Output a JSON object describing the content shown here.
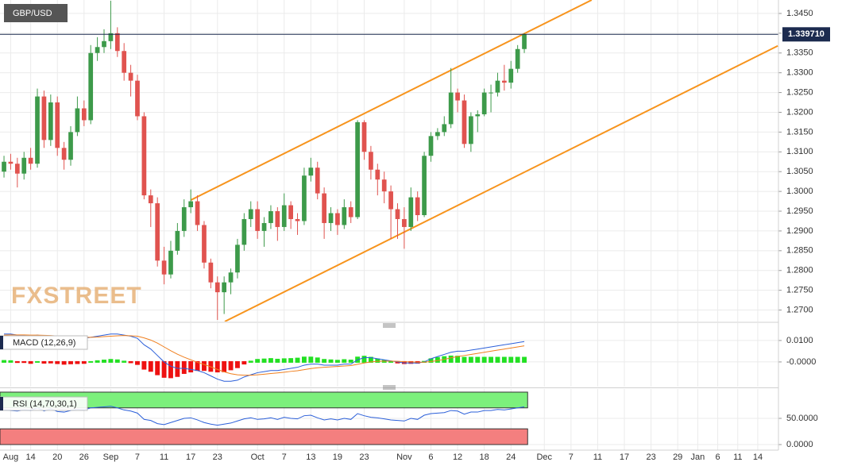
{
  "chart_data": [
    {
      "type": "candlestick",
      "symbol": "GBP/USD",
      "logo": "FXSTREET",
      "up_color": "#3d9a4a",
      "down_color": "#e0534f",
      "xlim": [
        -0.6,
        116.1
      ],
      "ylim": [
        1.2671,
        1.3484
      ],
      "xticks": [
        {
          "value": 1,
          "label": "Aug"
        },
        {
          "value": 4,
          "label": "14"
        },
        {
          "value": 8,
          "label": "20"
        },
        {
          "value": 12,
          "label": "26"
        },
        {
          "value": 16,
          "label": "Sep"
        },
        {
          "value": 20,
          "label": "7"
        },
        {
          "value": 24,
          "label": "11"
        },
        {
          "value": 28,
          "label": "17"
        },
        {
          "value": 32,
          "label": "23"
        },
        {
          "value": 38,
          "label": "Oct"
        },
        {
          "value": 42,
          "label": "7"
        },
        {
          "value": 46,
          "label": "13"
        },
        {
          "value": 50,
          "label": "19"
        },
        {
          "value": 54,
          "label": "23"
        },
        {
          "value": 60,
          "label": "Nov"
        },
        {
          "value": 64,
          "label": "6"
        },
        {
          "value": 68,
          "label": "12"
        },
        {
          "value": 72,
          "label": "18"
        },
        {
          "value": 76,
          "label": "24"
        },
        {
          "value": 81,
          "label": "Dec"
        },
        {
          "value": 85,
          "label": "7"
        },
        {
          "value": 89,
          "label": "11"
        },
        {
          "value": 93,
          "label": "17"
        },
        {
          "value": 97,
          "label": "23"
        },
        {
          "value": 101,
          "label": "29"
        },
        {
          "value": 104,
          "label": "Jan"
        },
        {
          "value": 107,
          "label": "6"
        },
        {
          "value": 110,
          "label": "11"
        },
        {
          "value": 113,
          "label": "14"
        }
      ],
      "yticks": [
        {
          "value": 1.27,
          "label": "1.2700"
        },
        {
          "value": 1.275,
          "label": "1.2750"
        },
        {
          "value": 1.28,
          "label": "1.2800"
        },
        {
          "value": 1.285,
          "label": "1.2850"
        },
        {
          "value": 1.29,
          "label": "1.2900"
        },
        {
          "value": 1.295,
          "label": "1.2950"
        },
        {
          "value": 1.3,
          "label": "1.3000"
        },
        {
          "value": 1.305,
          "label": "1.3050"
        },
        {
          "value": 1.31,
          "label": "1.3100"
        },
        {
          "value": 1.315,
          "label": "1.3150"
        },
        {
          "value": 1.32,
          "label": "1.3200"
        },
        {
          "value": 1.325,
          "label": "1.3250"
        },
        {
          "value": 1.33,
          "label": "1.3300"
        },
        {
          "value": 1.335,
          "label": "1.3350"
        },
        {
          "value": 1.34,
          "label": "1.3400"
        },
        {
          "value": 1.345,
          "label": "1.3450"
        }
      ],
      "grid": true,
      "last_price": {
        "value": 1.33971,
        "label": "1.339710",
        "color": "#1c2b4f"
      },
      "trendlines": [
        {
          "x": [
            28,
            88.1
          ],
          "y": [
            1.2978,
            1.3484
          ],
          "color": "#f7941d"
        },
        {
          "x": [
            33.1,
            116
          ],
          "y": [
            1.2671,
            1.3368
          ],
          "color": "#f7941d"
        }
      ],
      "open": [
        1.305,
        1.3075,
        1.307,
        1.3045,
        1.3085,
        1.307,
        1.324,
        1.313,
        1.3225,
        1.311,
        1.308,
        1.315,
        1.321,
        1.318,
        1.335,
        1.3365,
        1.338,
        1.34,
        1.3355,
        1.33,
        1.328,
        1.319,
        1.299,
        1.297,
        1.2825,
        1.279,
        1.285,
        1.29,
        1.296,
        1.2975,
        1.2915,
        1.282,
        1.277,
        1.2745,
        1.277,
        1.2795,
        1.2865,
        1.293,
        1.2955,
        1.29,
        1.292,
        1.295,
        1.291,
        1.2965,
        1.293,
        1.2925,
        1.304,
        1.306,
        1.2995,
        1.292,
        1.2945,
        1.2915,
        1.296,
        1.2935,
        1.3175,
        1.31,
        1.3055,
        1.303,
        1.3,
        1.2955,
        1.293,
        1.291,
        1.2985,
        1.294,
        1.309,
        1.314,
        1.315,
        1.317,
        1.325,
        1.323,
        1.312,
        1.319,
        1.3195,
        1.325,
        1.325,
        1.328,
        1.3275,
        1.331,
        1.336
      ],
      "high": [
        1.309,
        1.3095,
        1.3085,
        1.31,
        1.311,
        1.326,
        1.3255,
        1.3245,
        1.324,
        1.3125,
        1.3165,
        1.324,
        1.323,
        1.337,
        1.339,
        1.341,
        1.3482,
        1.3415,
        1.3375,
        1.332,
        1.3295,
        1.32,
        1.3005,
        1.2985,
        1.286,
        1.2875,
        1.292,
        1.298,
        1.3005,
        1.299,
        1.2925,
        1.283,
        1.2785,
        1.2785,
        1.2805,
        1.288,
        1.2945,
        1.2975,
        1.2975,
        1.2935,
        1.2965,
        1.296,
        1.2995,
        1.2975,
        1.2945,
        1.306,
        1.3085,
        1.3075,
        1.301,
        1.296,
        1.2955,
        1.298,
        1.2975,
        1.318,
        1.318,
        1.3115,
        1.307,
        1.305,
        1.3015,
        1.297,
        1.296,
        1.301,
        1.3,
        1.31,
        1.315,
        1.316,
        1.319,
        1.3312,
        1.326,
        1.3245,
        1.32,
        1.3205,
        1.326,
        1.327,
        1.33,
        1.332,
        1.333,
        1.337,
        1.34
      ],
      "low": [
        1.3035,
        1.3055,
        1.301,
        1.303,
        1.3055,
        1.306,
        1.311,
        1.3115,
        1.309,
        1.3055,
        1.3065,
        1.314,
        1.3165,
        1.317,
        1.333,
        1.335,
        1.336,
        1.334,
        1.328,
        1.324,
        1.318,
        1.298,
        1.291,
        1.281,
        1.2765,
        1.278,
        1.284,
        1.2885,
        1.2945,
        1.29,
        1.2805,
        1.2755,
        1.2675,
        1.269,
        1.274,
        1.278,
        1.285,
        1.291,
        1.288,
        1.286,
        1.2905,
        1.2875,
        1.29,
        1.2905,
        1.289,
        1.2915,
        1.3025,
        1.298,
        1.288,
        1.29,
        1.289,
        1.2905,
        1.292,
        1.293,
        1.308,
        1.303,
        1.299,
        1.297,
        1.288,
        1.288,
        1.2855,
        1.29,
        1.2925,
        1.2935,
        1.3075,
        1.313,
        1.314,
        1.316,
        1.32,
        1.311,
        1.31,
        1.315,
        1.319,
        1.32,
        1.324,
        1.3255,
        1.326,
        1.33,
        1.335
      ],
      "close": [
        1.3075,
        1.307,
        1.3045,
        1.3085,
        1.307,
        1.324,
        1.313,
        1.3225,
        1.311,
        1.308,
        1.315,
        1.321,
        1.318,
        1.335,
        1.3365,
        1.338,
        1.34,
        1.3355,
        1.33,
        1.328,
        1.319,
        1.299,
        1.297,
        1.2825,
        1.279,
        1.285,
        1.29,
        1.296,
        1.2975,
        1.2915,
        1.282,
        1.277,
        1.2745,
        1.277,
        1.2795,
        1.2865,
        1.293,
        1.2955,
        1.29,
        1.292,
        1.295,
        1.291,
        1.2965,
        1.293,
        1.2925,
        1.304,
        1.306,
        1.2995,
        1.292,
        1.2945,
        1.2915,
        1.296,
        1.2935,
        1.3175,
        1.31,
        1.3055,
        1.303,
        1.3,
        1.2955,
        1.293,
        1.291,
        1.2985,
        1.294,
        1.309,
        1.314,
        1.315,
        1.317,
        1.325,
        1.323,
        1.312,
        1.319,
        1.3195,
        1.325,
        1.325,
        1.328,
        1.3275,
        1.331,
        1.336,
        1.33971
      ]
    },
    {
      "type": "macd",
      "label": "MACD (12,26,9)",
      "ylim": [
        -0.0115,
        0.0181
      ],
      "yticks": [
        {
          "value": 0.01,
          "label": "0.0100"
        },
        {
          "value": 0,
          "label": "-0.0000"
        }
      ],
      "series": [
        {
          "color": "#2b5fd9",
          "values": [
            0.013,
            0.013,
            0.0125,
            0.0125,
            0.012,
            0.0125,
            0.012,
            0.012,
            0.0115,
            0.011,
            0.011,
            0.011,
            0.011,
            0.0115,
            0.012,
            0.0125,
            0.013,
            0.013,
            0.0125,
            0.012,
            0.011,
            0.008,
            0.006,
            0.003,
            0.0,
            -0.002,
            -0.003,
            -0.003,
            -0.0035,
            -0.004,
            -0.005,
            -0.0065,
            -0.008,
            -0.009,
            -0.009,
            -0.0085,
            -0.007,
            -0.006,
            -0.005,
            -0.0045,
            -0.004,
            -0.004,
            -0.0035,
            -0.003,
            -0.0025,
            -0.0015,
            -0.001,
            -0.001,
            -0.0015,
            -0.0015,
            -0.0015,
            -0.001,
            -0.001,
            0.001,
            0.002,
            0.002,
            0.0015,
            0.001,
            0.0005,
            0.0,
            -0.0005,
            -0.0005,
            -0.0005,
            0.0,
            0.0015,
            0.0025,
            0.0035,
            0.0045,
            0.005,
            0.005,
            0.0055,
            0.006,
            0.0065,
            0.007,
            0.0075,
            0.008,
            0.0085,
            0.009,
            0.0095
          ]
        },
        {
          "color": "#f07f1e",
          "values": [
            0.0125,
            0.0126,
            0.0126,
            0.0126,
            0.0125,
            0.0125,
            0.0124,
            0.0123,
            0.0121,
            0.0119,
            0.0117,
            0.0116,
            0.0115,
            0.0115,
            0.0116,
            0.0118,
            0.012,
            0.0122,
            0.0123,
            0.0122,
            0.012,
            0.0112,
            0.0102,
            0.0088,
            0.007,
            0.0052,
            0.0036,
            0.0022,
            0.001,
            -0.0002,
            -0.0012,
            -0.0023,
            -0.0035,
            -0.0046,
            -0.0055,
            -0.006,
            -0.0062,
            -0.0062,
            -0.006,
            -0.0057,
            -0.0054,
            -0.0051,
            -0.0048,
            -0.0044,
            -0.0041,
            -0.0036,
            -0.0031,
            -0.0027,
            -0.0025,
            -0.0023,
            -0.0021,
            -0.0019,
            -0.0017,
            -0.0011,
            -0.0005,
            0.0,
            0.0003,
            0.0004,
            0.0004,
            0.0003,
            0.0001,
            0.0,
            -0.0001,
            -0.0001,
            0.0002,
            0.0006,
            0.0012,
            0.0019,
            0.0025,
            0.003,
            0.0035,
            0.004,
            0.0045,
            0.005,
            0.0055,
            0.006,
            0.0065,
            0.007,
            0.0075
          ]
        }
      ],
      "histogram": {
        "up_color": "#22e022",
        "down_color": "#ee1111",
        "values": [
          0.0005,
          0.0004,
          -0.0001,
          -0.0001,
          -0.0005,
          0,
          -0.0004,
          -0.0003,
          -0.0006,
          -0.0009,
          -0.0007,
          -0.0006,
          -0.0005,
          0,
          0.0004,
          0.0007,
          0.001,
          0.0008,
          0.0002,
          -0.0002,
          -0.001,
          -0.0032,
          -0.0042,
          -0.0058,
          -0.007,
          -0.0072,
          -0.0066,
          -0.0052,
          -0.0045,
          -0.0038,
          -0.0038,
          -0.0042,
          -0.0045,
          -0.0044,
          -0.0035,
          -0.0025,
          -0.0008,
          0.0002,
          0.001,
          0.0012,
          0.0014,
          0.0011,
          0.0013,
          0.0014,
          0.0016,
          0.0021,
          0.0021,
          0.0017,
          0.001,
          0.0008,
          0.0006,
          0.0009,
          0.0007,
          0.0021,
          0.0025,
          0.002,
          0.0012,
          0.0006,
          0.0001,
          -0.0003,
          -0.0006,
          -0.0005,
          -0.0004,
          0.0001,
          0.0013,
          0.0019,
          0.0023,
          0.0026,
          0.0025,
          0.002,
          0.002,
          0.002,
          0.002,
          0.002,
          0.002,
          0.002,
          0.002,
          0.002,
          0.002
        ]
      }
    },
    {
      "type": "rsi",
      "label": "RSI (14,70,30,1)",
      "ylim": [
        -10.6,
        106
      ],
      "yticks": [
        {
          "value": 50,
          "label": "50.0000"
        },
        {
          "value": 0,
          "label": "0.0000"
        }
      ],
      "bands": [
        {
          "range": [
            70,
            100
          ],
          "color": "#7cf07c"
        },
        {
          "range": [
            0,
            30
          ],
          "color": "#f47f7f"
        }
      ],
      "series": [
        {
          "color": "#2b5fd9",
          "values": [
            66,
            65,
            64,
            66,
            65,
            70,
            64,
            68,
            63,
            62,
            65,
            67,
            66,
            70,
            71,
            72,
            73,
            70,
            66,
            64,
            60,
            48,
            46,
            40,
            38,
            42,
            46,
            50,
            51,
            47,
            42,
            39,
            37,
            39,
            41,
            45,
            49,
            51,
            48,
            49,
            51,
            48,
            52,
            50,
            49,
            55,
            56,
            51,
            47,
            49,
            47,
            50,
            48,
            59,
            55,
            52,
            51,
            49,
            47,
            46,
            45,
            50,
            48,
            56,
            59,
            60,
            61,
            65,
            64,
            58,
            62,
            62,
            65,
            65,
            67,
            66,
            68,
            70,
            72
          ]
        }
      ]
    }
  ]
}
